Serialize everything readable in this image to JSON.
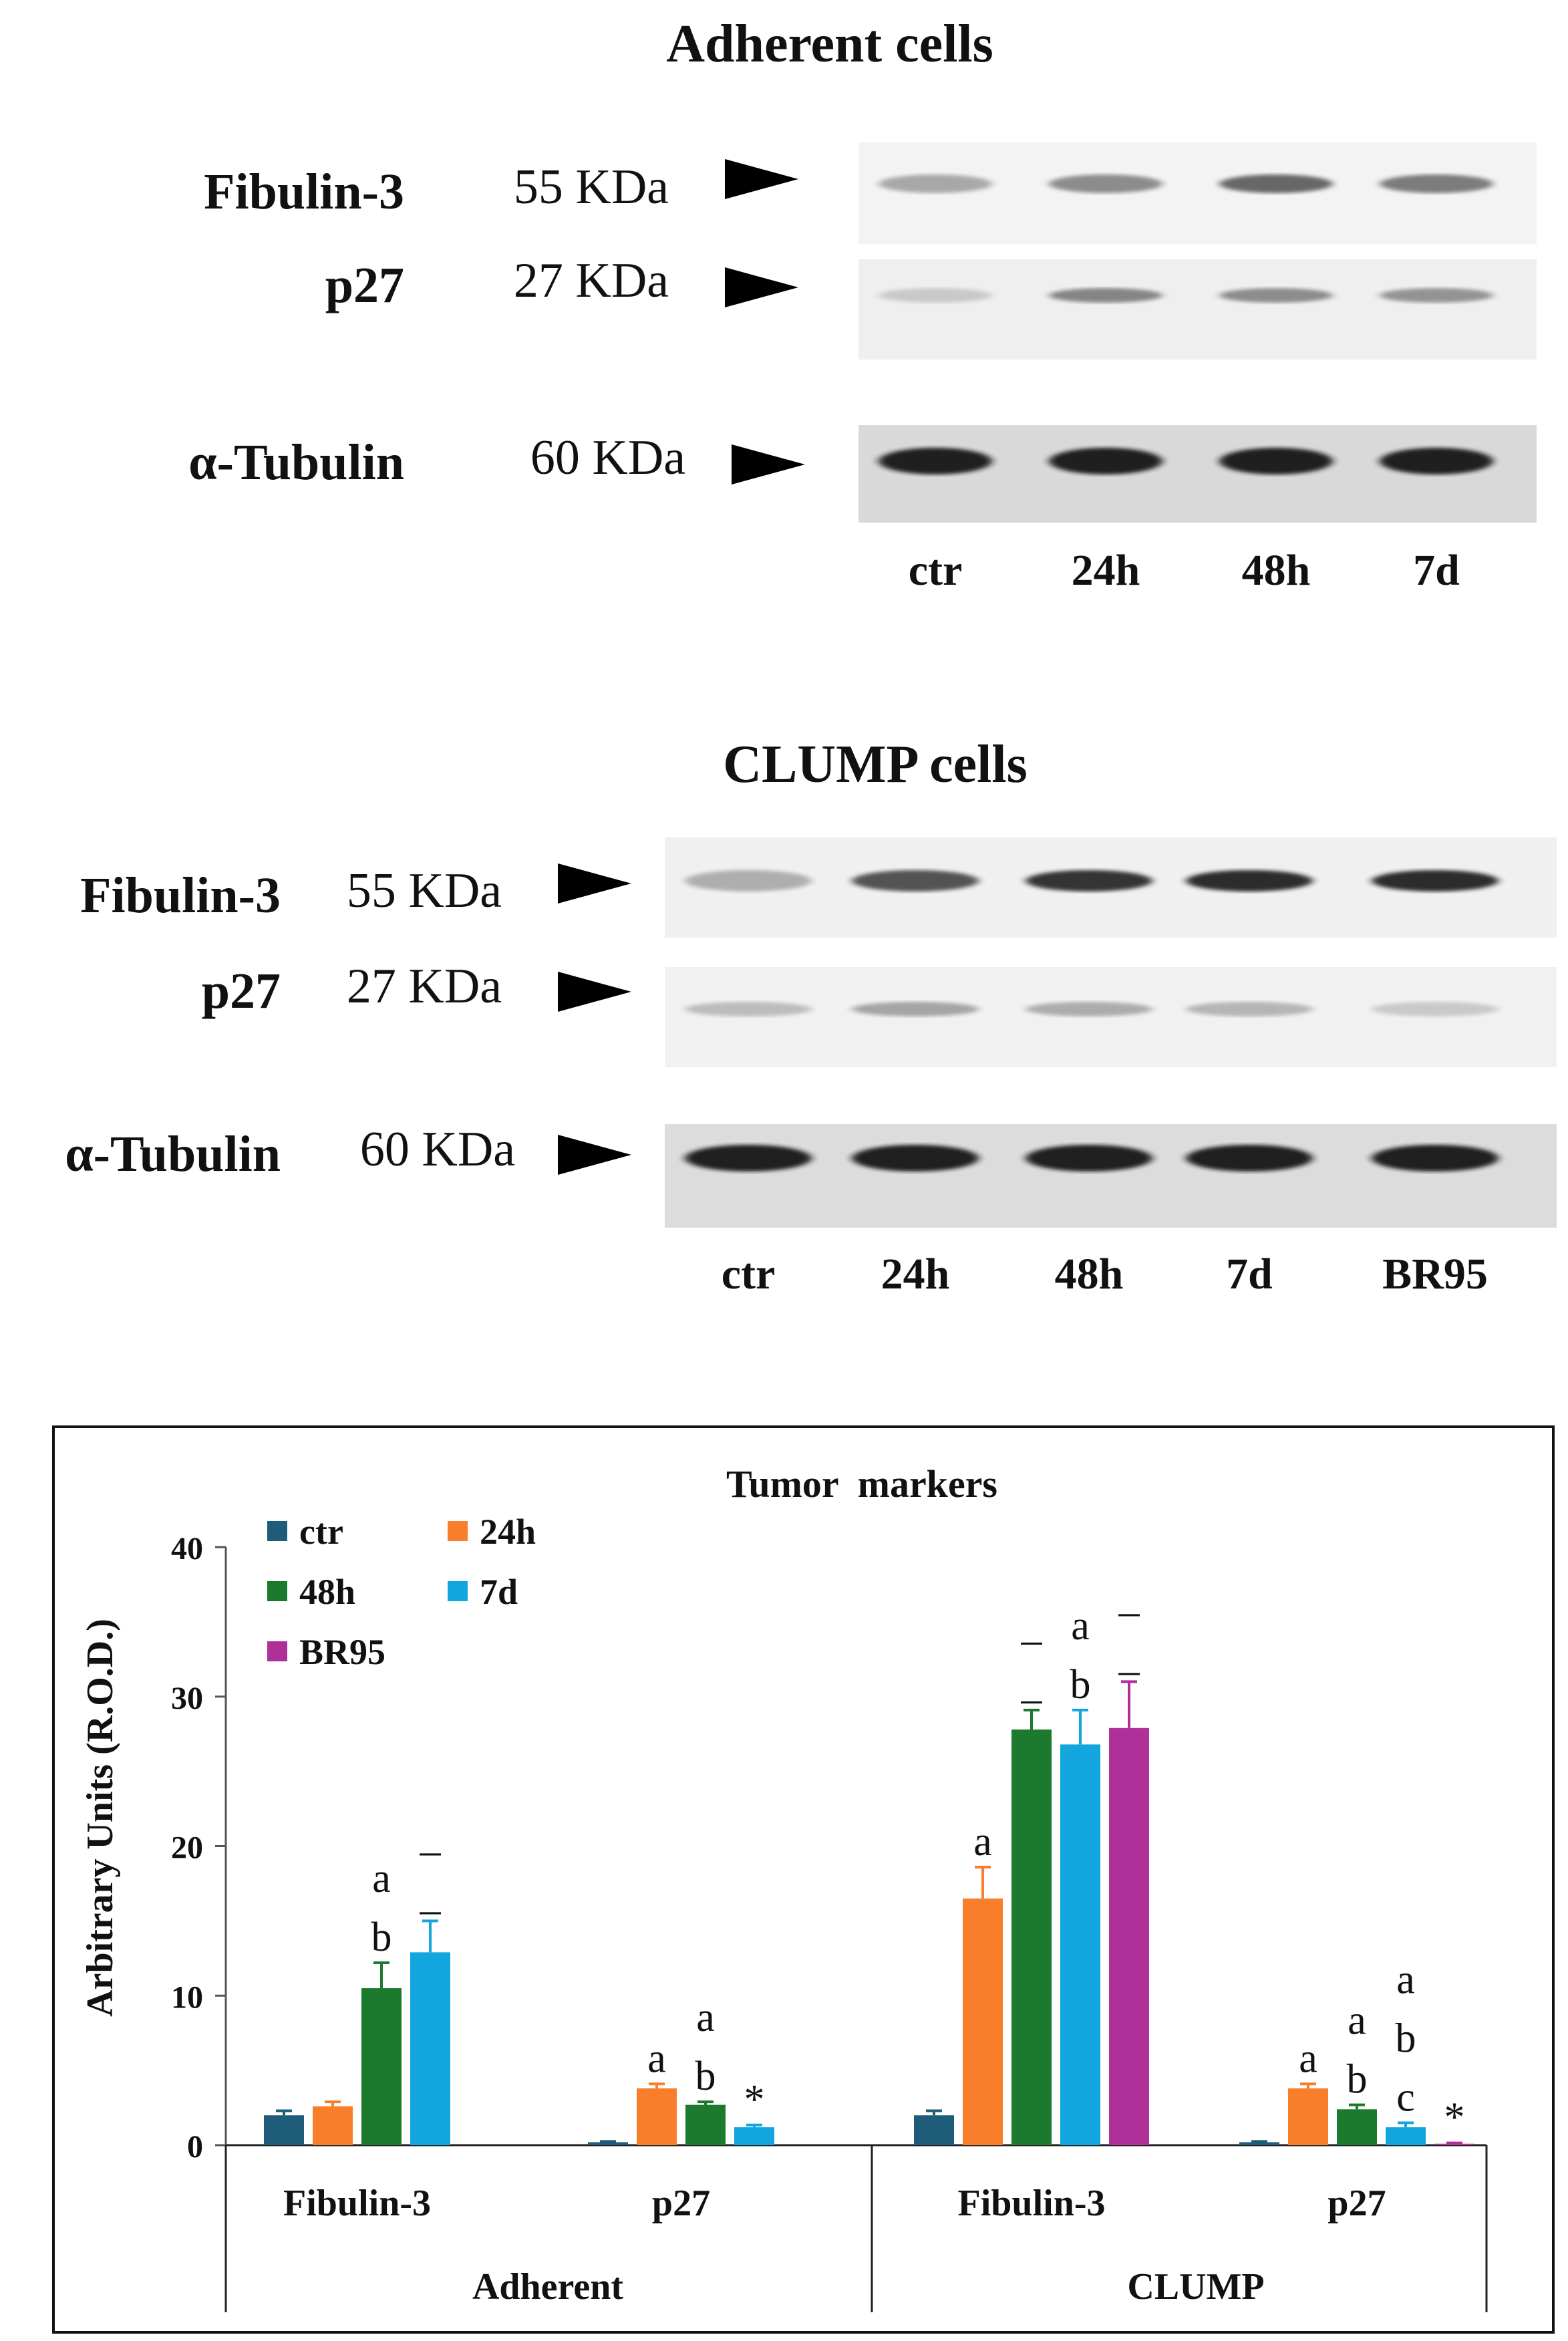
{
  "blots": [
    {
      "title": "Adherent cells",
      "rows": [
        {
          "protein": "Fibulin-3",
          "size": "55 KDa",
          "bands": [
            0.28,
            0.42,
            0.6,
            0.5
          ]
        },
        {
          "protein": "p27",
          "size": "27 KDa",
          "bands": [
            0.12,
            0.45,
            0.42,
            0.38
          ]
        },
        {
          "protein": "α-Tubulin",
          "size": "60 KDa",
          "bands": [
            0.95,
            0.95,
            0.95,
            0.95
          ]
        }
      ],
      "lanes": [
        "ctr",
        "24h",
        "48h",
        "7d"
      ]
    },
    {
      "title": "CLUMP cells",
      "rows": [
        {
          "protein": "Fibulin-3",
          "size": "55 KDa",
          "bands": [
            0.25,
            0.7,
            0.85,
            0.9,
            0.9
          ]
        },
        {
          "protein": "p27",
          "size": "27 KDa",
          "bands": [
            0.18,
            0.3,
            0.26,
            0.22,
            0.12
          ]
        },
        {
          "protein": "α-Tubulin",
          "size": "60 KDa",
          "bands": [
            0.95,
            0.95,
            0.95,
            0.95,
            0.95
          ]
        }
      ],
      "lanes": [
        "ctr",
        "24h",
        "48h",
        "7d",
        "BR95"
      ]
    }
  ],
  "chart_data": {
    "type": "bar",
    "title": "Tumor  markers",
    "ylabel": "Arbitrary Units (R.O.D.)",
    "ylim": [
      0,
      40
    ],
    "yticks": [
      "0",
      "10",
      "20",
      "30",
      "40"
    ],
    "groups": [
      {
        "label": "Fibulin-3",
        "parent": "Adherent",
        "bars": [
          {
            "series": "ctr",
            "value": 2.0,
            "err": 0.3
          },
          {
            "series": "24h",
            "value": 2.6,
            "err": 0.3
          },
          {
            "series": "48h",
            "value": 10.5,
            "err": 1.7
          },
          {
            "series": "7d",
            "value": 12.9,
            "err": 2.1
          }
        ]
      },
      {
        "label": "p27",
        "parent": "Adherent",
        "bars": [
          {
            "series": "ctr",
            "value": 0.2,
            "err": 0.05
          },
          {
            "series": "24h",
            "value": 3.8,
            "err": 0.3
          },
          {
            "series": "48h",
            "value": 2.7,
            "err": 0.2
          },
          {
            "series": "7d",
            "value": 1.2,
            "err": 0.15
          }
        ]
      },
      {
        "label": "Fibulin-3",
        "parent": "CLUMP",
        "bars": [
          {
            "series": "ctr",
            "value": 2.0,
            "err": 0.3
          },
          {
            "series": "24h",
            "value": 16.5,
            "err": 2.1
          },
          {
            "series": "48h",
            "value": 27.8,
            "err": 1.3
          },
          {
            "series": "7d",
            "value": 26.8,
            "err": 2.3
          },
          {
            "series": "BR95",
            "value": 27.9,
            "err": 3.1
          }
        ]
      },
      {
        "label": "p27",
        "parent": "CLUMP",
        "bars": [
          {
            "series": "ctr",
            "value": 0.2,
            "err": 0.05
          },
          {
            "series": "24h",
            "value": 3.8,
            "err": 0.3
          },
          {
            "series": "48h",
            "value": 2.4,
            "err": 0.3
          },
          {
            "series": "7d",
            "value": 1.2,
            "err": 0.3
          },
          {
            "series": "BR95",
            "value": 0.1,
            "err": 0.05
          }
        ]
      }
    ],
    "parents": [
      "Adherent",
      "CLUMP"
    ],
    "series": [
      {
        "name": "ctr",
        "color": "#1F5C7A"
      },
      {
        "name": "24h",
        "color": "#F97E2B"
      },
      {
        "name": "48h",
        "color": "#1C7A2E"
      },
      {
        "name": "7d",
        "color": "#13A5DE"
      },
      {
        "name": "BR95",
        "color": "#B0309A"
      }
    ],
    "annotations": [
      {
        "group": 0,
        "bar": 2,
        "lines": [
          "a",
          "b"
        ]
      },
      {
        "group": 0,
        "bar": 3,
        "lines": [
          "_",
          "_"
        ]
      },
      {
        "group": 1,
        "bar": 1,
        "lines": [
          "a"
        ]
      },
      {
        "group": 1,
        "bar": 2,
        "lines": [
          "a",
          "b"
        ]
      },
      {
        "group": 1,
        "bar": 3,
        "lines": [
          "*"
        ]
      },
      {
        "group": 2,
        "bar": 1,
        "lines": [
          "a"
        ]
      },
      {
        "group": 2,
        "bar": 2,
        "lines": [
          "_",
          "_"
        ]
      },
      {
        "group": 2,
        "bar": 3,
        "lines": [
          "a",
          "b"
        ]
      },
      {
        "group": 2,
        "bar": 4,
        "lines": [
          "_",
          "_"
        ]
      },
      {
        "group": 3,
        "bar": 1,
        "lines": [
          "a"
        ]
      },
      {
        "group": 3,
        "bar": 2,
        "lines": [
          "a",
          "b"
        ]
      },
      {
        "group": 3,
        "bar": 3,
        "lines": [
          "a",
          "b",
          "c"
        ]
      },
      {
        "group": 3,
        "bar": 4,
        "lines": [
          "*"
        ]
      }
    ]
  }
}
